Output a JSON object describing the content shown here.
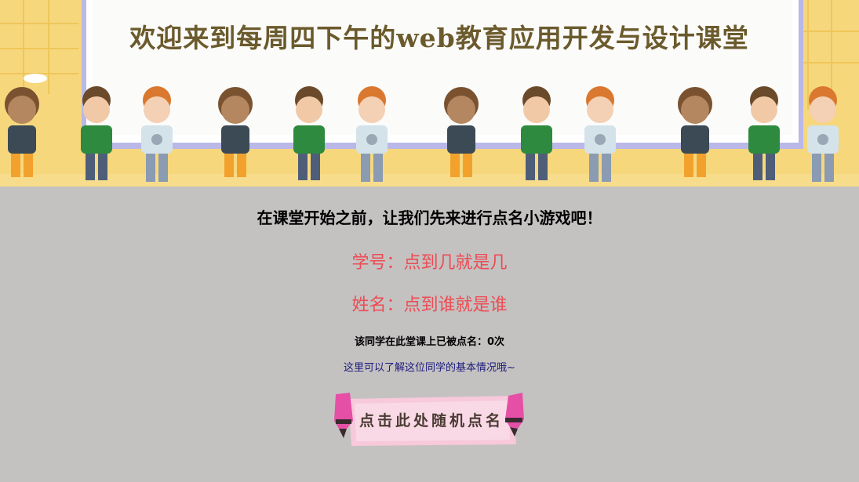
{
  "banner": {
    "title": "欢迎来到每周四下午的web教育应用开发与设计课堂"
  },
  "main": {
    "intro": "在课堂开始之前，让我们先来进行点名小游戏吧！",
    "student_id": "学号：点到几就是几",
    "student_name": "姓名：点到谁就是谁",
    "roll_count": "该同学在此堂课上已被点名：0次",
    "info_link": "这里可以了解这位同学的基本情况哦~",
    "roll_button": "点击此处随机点名"
  },
  "colors": {
    "page_background": "#c4c1c1",
    "banner_background": "#f5d57a",
    "highlight_text": "#ec4c53",
    "link_text": "#1b1a7a"
  }
}
